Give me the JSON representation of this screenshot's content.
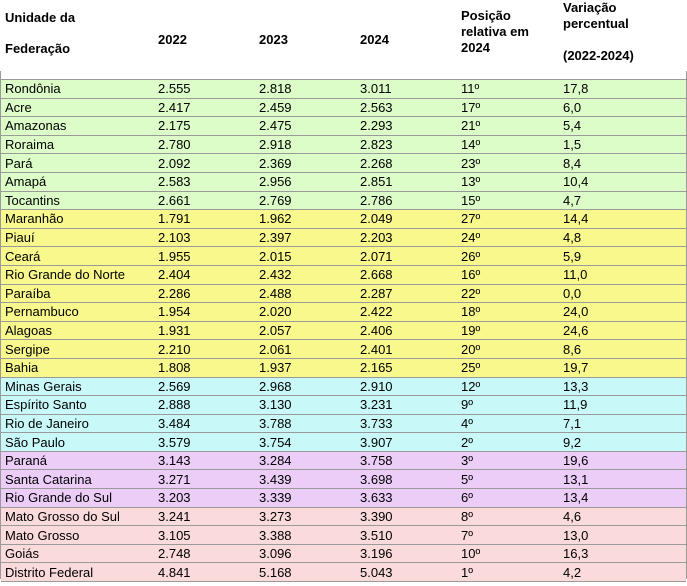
{
  "header": {
    "uf_line1": "Unidade da",
    "uf_line2": "Federação",
    "y2022": "2022",
    "y2023": "2023",
    "y2024": "2024",
    "pos_line1": "Posição",
    "pos_line2": "relativa em",
    "pos_line3": "2024",
    "var_line1": "Variação",
    "var_line2": "percentual",
    "var_line3": "(2022-2024)"
  },
  "rows": [
    {
      "uf": "Rondônia",
      "v2022": "2.555",
      "v2023": "2.818",
      "v2024": "3.011",
      "pos": "11º",
      "var": "17,8",
      "region": "norte"
    },
    {
      "uf": "Acre",
      "v2022": "2.417",
      "v2023": "2.459",
      "v2024": "2.563",
      "pos": "17º",
      "var": "6,0",
      "region": "norte"
    },
    {
      "uf": "Amazonas",
      "v2022": "2.175",
      "v2023": "2.475",
      "v2024": "2.293",
      "pos": "21º",
      "var": "5,4",
      "region": "norte"
    },
    {
      "uf": "Roraima",
      "v2022": "2.780",
      "v2023": "2.918",
      "v2024": "2.823",
      "pos": "14º",
      "var": "1,5",
      "region": "norte"
    },
    {
      "uf": "Pará",
      "v2022": "2.092",
      "v2023": "2.369",
      "v2024": "2.268",
      "pos": "23º",
      "var": "8,4",
      "region": "norte"
    },
    {
      "uf": "Amapá",
      "v2022": "2.583",
      "v2023": "2.956",
      "v2024": "2.851",
      "pos": "13º",
      "var": "10,4",
      "region": "norte"
    },
    {
      "uf": "Tocantins",
      "v2022": "2.661",
      "v2023": "2.769",
      "v2024": "2.786",
      "pos": "15º",
      "var": "4,7",
      "region": "norte"
    },
    {
      "uf": "Maranhão",
      "v2022": "1.791",
      "v2023": "1.962",
      "v2024": "2.049",
      "pos": "27º",
      "var": "14,4",
      "region": "nordeste"
    },
    {
      "uf": "Piauí",
      "v2022": "2.103",
      "v2023": "2.397",
      "v2024": "2.203",
      "pos": "24º",
      "var": "4,8",
      "region": "nordeste"
    },
    {
      "uf": "Ceará",
      "v2022": "1.955",
      "v2023": "2.015",
      "v2024": "2.071",
      "pos": "26º",
      "var": "5,9",
      "region": "nordeste"
    },
    {
      "uf": "Rio Grande do Norte",
      "v2022": "2.404",
      "v2023": "2.432",
      "v2024": "2.668",
      "pos": "16º",
      "var": "11,0",
      "region": "nordeste"
    },
    {
      "uf": "Paraíba",
      "v2022": "2.286",
      "v2023": "2.488",
      "v2024": "2.287",
      "pos": "22º",
      "var": "0,0",
      "region": "nordeste"
    },
    {
      "uf": "Pernambuco",
      "v2022": "1.954",
      "v2023": "2.020",
      "v2024": "2.422",
      "pos": "18º",
      "var": "24,0",
      "region": "nordeste"
    },
    {
      "uf": "Alagoas",
      "v2022": "1.931",
      "v2023": "2.057",
      "v2024": "2.406",
      "pos": "19º",
      "var": "24,6",
      "region": "nordeste"
    },
    {
      "uf": "Sergipe",
      "v2022": "2.210",
      "v2023": "2.061",
      "v2024": "2.401",
      "pos": "20º",
      "var": "8,6",
      "region": "nordeste"
    },
    {
      "uf": "Bahia",
      "v2022": "1.808",
      "v2023": "1.937",
      "v2024": "2.165",
      "pos": "25º",
      "var": "19,7",
      "region": "nordeste"
    },
    {
      "uf": "Minas Gerais",
      "v2022": "2.569",
      "v2023": "2.968",
      "v2024": "2.910",
      "pos": "12º",
      "var": "13,3",
      "region": "sudeste"
    },
    {
      "uf": "Espírito Santo",
      "v2022": "2.888",
      "v2023": "3.130",
      "v2024": "3.231",
      "pos": "9º",
      "var": "11,9",
      "region": "sudeste"
    },
    {
      "uf": "Rio de Janeiro",
      "v2022": "3.484",
      "v2023": "3.788",
      "v2024": "3.733",
      "pos": "4º",
      "var": "7,1",
      "region": "sudeste"
    },
    {
      "uf": "São Paulo",
      "v2022": "3.579",
      "v2023": "3.754",
      "v2024": "3.907",
      "pos": "2º",
      "var": "9,2",
      "region": "sudeste"
    },
    {
      "uf": "Paraná",
      "v2022": "3.143",
      "v2023": "3.284",
      "v2024": "3.758",
      "pos": "3º",
      "var": "19,6",
      "region": "sul"
    },
    {
      "uf": "Santa Catarina",
      "v2022": "3.271",
      "v2023": "3.439",
      "v2024": "3.698",
      "pos": "5º",
      "var": "13,1",
      "region": "sul"
    },
    {
      "uf": "Rio Grande do Sul",
      "v2022": "3.203",
      "v2023": "3.339",
      "v2024": "3.633",
      "pos": "6º",
      "var": "13,4",
      "region": "sul"
    },
    {
      "uf": "Mato Grosso do Sul",
      "v2022": "3.241",
      "v2023": "3.273",
      "v2024": "3.390",
      "pos": "8º",
      "var": "4,6",
      "region": "co"
    },
    {
      "uf": "Mato Grosso",
      "v2022": "3.105",
      "v2023": "3.388",
      "v2024": "3.510",
      "pos": "7º",
      "var": "13,0",
      "region": "co"
    },
    {
      "uf": "Goiás",
      "v2022": "2.748",
      "v2023": "3.096",
      "v2024": "3.196",
      "pos": "10º",
      "var": "16,3",
      "region": "co"
    },
    {
      "uf": "Distrito Federal",
      "v2022": "4.841",
      "v2023": "5.168",
      "v2024": "5.043",
      "pos": "1º",
      "var": "4,2",
      "region": "co"
    }
  ],
  "colors": {
    "norte": "#dcfcc8",
    "nordeste": "#f8f88c",
    "sudeste": "#c8f8f8",
    "sul": "#eccdf8",
    "co": "#fadada"
  }
}
